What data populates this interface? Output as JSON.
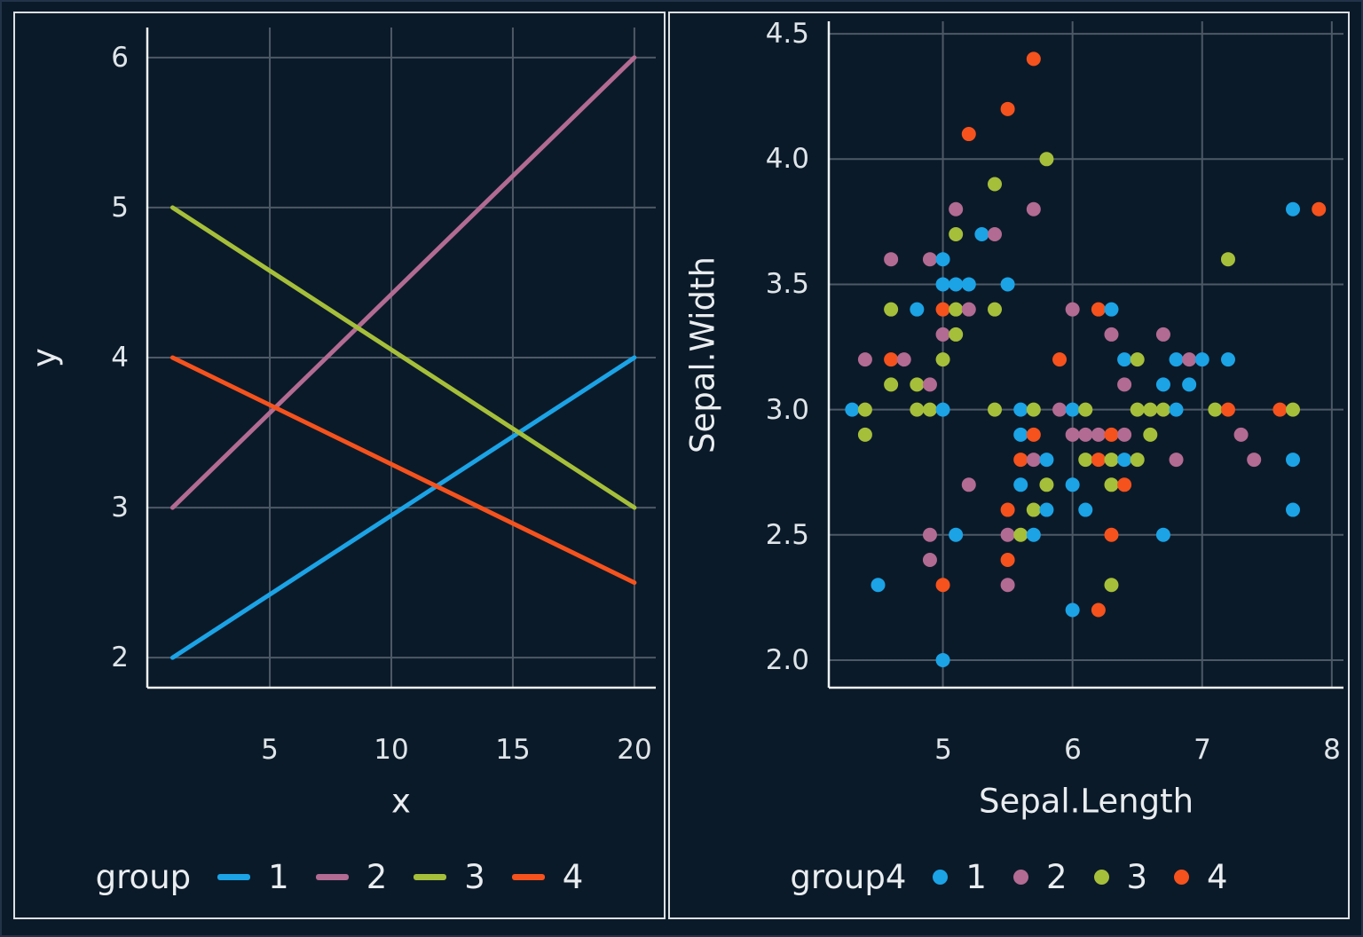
{
  "style": {
    "background": "#0b1a29",
    "card_border": "#dcdfe2",
    "grid_color": "#4d5966",
    "axis_color": "#eef2f4",
    "text_color": "#e9edf0",
    "palette": {
      "1": "#1ba3e6",
      "2": "#b26b92",
      "3": "#a6bf3a",
      "4": "#f5521d"
    }
  },
  "chart_data": [
    {
      "id": "lines",
      "type": "line",
      "title": "",
      "xlabel": "x",
      "ylabel": "y",
      "x_ticks": [
        "5",
        "10",
        "15",
        "20"
      ],
      "x_tick_values": [
        5,
        10,
        15,
        20
      ],
      "y_ticks": [
        "2",
        "3",
        "4",
        "5",
        "6"
      ],
      "y_tick_values": [
        2,
        3,
        4,
        5,
        6
      ],
      "xlim": [
        -0.04,
        20.88
      ],
      "ylim": [
        1.8,
        6.2
      ],
      "grid": true,
      "legend": {
        "title": "group",
        "position": "bottom",
        "items": [
          "1",
          "2",
          "3",
          "4"
        ]
      },
      "series": [
        {
          "name": "1",
          "group": 1,
          "points": [
            [
              1,
              2
            ],
            [
              20,
              4
            ]
          ]
        },
        {
          "name": "2",
          "group": 2,
          "points": [
            [
              1,
              3
            ],
            [
              20,
              6
            ]
          ]
        },
        {
          "name": "3",
          "group": 3,
          "points": [
            [
              1,
              5
            ],
            [
              20,
              3
            ]
          ]
        },
        {
          "name": "4",
          "group": 4,
          "points": [
            [
              1,
              4
            ],
            [
              20,
              2.5
            ]
          ]
        }
      ]
    },
    {
      "id": "scatter",
      "type": "scatter",
      "title": "",
      "xlabel": "Sepal.Length",
      "ylabel": "Sepal.Width",
      "x_ticks": [
        "5",
        "6",
        "7",
        "8"
      ],
      "x_tick_values": [
        5,
        6,
        7,
        8
      ],
      "y_ticks": [
        "2.0",
        "2.5",
        "3.0",
        "3.5",
        "4.0",
        "4.5"
      ],
      "y_tick_values": [
        2,
        2.5,
        3,
        3.5,
        4,
        4.5
      ],
      "xlim": [
        4.12,
        8.09
      ],
      "ylim": [
        1.89,
        4.55
      ],
      "grid": true,
      "legend": {
        "title": "group4",
        "position": "bottom",
        "items": [
          "1",
          "2",
          "3",
          "4"
        ]
      },
      "points": [
        [
          5.7,
          4.4,
          4
        ],
        [
          5.5,
          4.2,
          4
        ],
        [
          5.2,
          4.1,
          4
        ],
        [
          5.8,
          4.0,
          3
        ],
        [
          5.4,
          3.9,
          3
        ],
        [
          5.1,
          3.8,
          2
        ],
        [
          5.7,
          3.8,
          2
        ],
        [
          7.7,
          3.8,
          1
        ],
        [
          7.9,
          3.8,
          4
        ],
        [
          5.1,
          3.7,
          3
        ],
        [
          5.3,
          3.7,
          1
        ],
        [
          5.4,
          3.7,
          2
        ],
        [
          4.6,
          3.6,
          2
        ],
        [
          4.9,
          3.6,
          2
        ],
        [
          5.0,
          3.6,
          1
        ],
        [
          7.2,
          3.6,
          3
        ],
        [
          5.0,
          3.5,
          1
        ],
        [
          5.1,
          3.5,
          1
        ],
        [
          5.2,
          3.5,
          1
        ],
        [
          5.5,
          3.5,
          1
        ],
        [
          4.6,
          3.4,
          3
        ],
        [
          4.8,
          3.4,
          1
        ],
        [
          5.0,
          3.4,
          4
        ],
        [
          5.1,
          3.4,
          3
        ],
        [
          5.2,
          3.4,
          2
        ],
        [
          5.4,
          3.4,
          3
        ],
        [
          6.0,
          3.4,
          2
        ],
        [
          6.2,
          3.4,
          4
        ],
        [
          6.3,
          3.4,
          1
        ],
        [
          5.0,
          3.3,
          2
        ],
        [
          5.1,
          3.3,
          3
        ],
        [
          6.3,
          3.3,
          2
        ],
        [
          6.7,
          3.3,
          2
        ],
        [
          4.4,
          3.2,
          2
        ],
        [
          4.6,
          3.2,
          4
        ],
        [
          4.7,
          3.2,
          2
        ],
        [
          5.0,
          3.2,
          3
        ],
        [
          5.9,
          3.2,
          4
        ],
        [
          6.4,
          3.2,
          1
        ],
        [
          6.5,
          3.2,
          3
        ],
        [
          6.8,
          3.2,
          1
        ],
        [
          6.9,
          3.2,
          2
        ],
        [
          7.0,
          3.2,
          1
        ],
        [
          7.2,
          3.2,
          1
        ],
        [
          4.6,
          3.1,
          3
        ],
        [
          4.8,
          3.1,
          3
        ],
        [
          4.9,
          3.1,
          2
        ],
        [
          6.4,
          3.1,
          2
        ],
        [
          6.7,
          3.1,
          1
        ],
        [
          6.9,
          3.1,
          1
        ],
        [
          4.3,
          3.0,
          1
        ],
        [
          4.4,
          3.0,
          3
        ],
        [
          4.8,
          3.0,
          3
        ],
        [
          4.9,
          3.0,
          3
        ],
        [
          5.0,
          3.0,
          1
        ],
        [
          5.4,
          3.0,
          3
        ],
        [
          5.6,
          3.0,
          1
        ],
        [
          5.7,
          3.0,
          3
        ],
        [
          5.9,
          3.0,
          2
        ],
        [
          6.0,
          3.0,
          1
        ],
        [
          6.1,
          3.0,
          3
        ],
        [
          6.5,
          3.0,
          3
        ],
        [
          6.6,
          3.0,
          3
        ],
        [
          6.7,
          3.0,
          3
        ],
        [
          6.8,
          3.0,
          1
        ],
        [
          7.1,
          3.0,
          3
        ],
        [
          7.2,
          3.0,
          4
        ],
        [
          7.6,
          3.0,
          4
        ],
        [
          7.7,
          3.0,
          3
        ],
        [
          4.4,
          2.9,
          3
        ],
        [
          5.6,
          2.9,
          1
        ],
        [
          5.7,
          2.9,
          4
        ],
        [
          6.0,
          2.9,
          2
        ],
        [
          6.1,
          2.9,
          2
        ],
        [
          6.2,
          2.9,
          2
        ],
        [
          6.3,
          2.9,
          4
        ],
        [
          6.4,
          2.9,
          2
        ],
        [
          6.6,
          2.9,
          3
        ],
        [
          7.3,
          2.9,
          2
        ],
        [
          5.6,
          2.8,
          4
        ],
        [
          5.7,
          2.8,
          2
        ],
        [
          5.8,
          2.8,
          1
        ],
        [
          6.1,
          2.8,
          3
        ],
        [
          6.2,
          2.8,
          4
        ],
        [
          6.3,
          2.8,
          3
        ],
        [
          6.4,
          2.8,
          1
        ],
        [
          6.5,
          2.8,
          3
        ],
        [
          6.8,
          2.8,
          2
        ],
        [
          7.4,
          2.8,
          2
        ],
        [
          7.7,
          2.8,
          1
        ],
        [
          5.2,
          2.7,
          2
        ],
        [
          5.6,
          2.7,
          1
        ],
        [
          5.8,
          2.7,
          3
        ],
        [
          6.0,
          2.7,
          1
        ],
        [
          6.3,
          2.7,
          3
        ],
        [
          6.4,
          2.7,
          4
        ],
        [
          5.5,
          2.6,
          4
        ],
        [
          5.7,
          2.6,
          3
        ],
        [
          5.8,
          2.6,
          1
        ],
        [
          6.1,
          2.6,
          1
        ],
        [
          7.7,
          2.6,
          1
        ],
        [
          4.9,
          2.5,
          2
        ],
        [
          5.1,
          2.5,
          1
        ],
        [
          5.5,
          2.5,
          2
        ],
        [
          5.6,
          2.5,
          3
        ],
        [
          5.7,
          2.5,
          1
        ],
        [
          6.3,
          2.5,
          4
        ],
        [
          6.7,
          2.5,
          1
        ],
        [
          4.9,
          2.4,
          2
        ],
        [
          5.5,
          2.4,
          4
        ],
        [
          4.5,
          2.3,
          1
        ],
        [
          5.0,
          2.3,
          4
        ],
        [
          5.5,
          2.3,
          2
        ],
        [
          6.3,
          2.3,
          3
        ],
        [
          6.0,
          2.2,
          1
        ],
        [
          6.2,
          2.2,
          4
        ],
        [
          5.0,
          2.0,
          1
        ]
      ]
    }
  ]
}
